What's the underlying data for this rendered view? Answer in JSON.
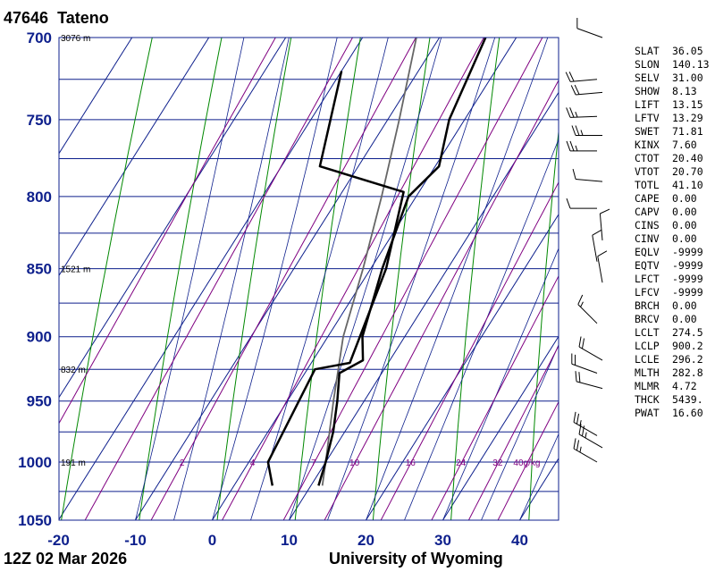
{
  "station": {
    "number": "47646",
    "name": "Tateno"
  },
  "date_label": "12Z 02 Mar 2026",
  "credit": "University of Wyoming",
  "chart_data": {
    "type": "line",
    "subtype": "skew-t log-p",
    "xlabel": "",
    "ylabel": "",
    "xlim": [
      -20,
      45
    ],
    "ylim": [
      1050,
      700
    ],
    "y_scale": "log",
    "pressure_ticks": [
      700,
      750,
      800,
      850,
      900,
      950,
      1000,
      1050
    ],
    "temperature_ticks": [
      -20,
      -10,
      0,
      10,
      20,
      30,
      40
    ],
    "grid": true,
    "height_labels": [
      {
        "p": 700,
        "label": "3076 m"
      },
      {
        "p": 850,
        "label": "1521 m"
      },
      {
        "p": 925,
        "label": "832 m"
      },
      {
        "p": 1000,
        "label": "191 m"
      }
    ],
    "mixing_ratio_labels": [
      {
        "w": 2,
        "label": "2"
      },
      {
        "w": 4,
        "label": "4"
      },
      {
        "w": 7,
        "label": "7"
      },
      {
        "w": 10,
        "label": "10"
      },
      {
        "w": 16,
        "label": "16"
      },
      {
        "w": 24,
        "label": "24"
      },
      {
        "w": 32,
        "label": "32"
      },
      {
        "w": 40,
        "label": "40g/kg"
      }
    ],
    "series": [
      {
        "type": "temperature",
        "points": [
          {
            "p": 1020,
            "t": 11.0
          },
          {
            "p": 1000,
            "t": 10.0
          },
          {
            "p": 975,
            "t": 8.5
          },
          {
            "p": 950,
            "t": 6.5
          },
          {
            "p": 928,
            "t": 4.5
          },
          {
            "p": 918,
            "t": 6.5
          },
          {
            "p": 900,
            "t": 4.5
          },
          {
            "p": 850,
            "t": 1.5
          },
          {
            "p": 800,
            "t": -1.0
          },
          {
            "p": 780,
            "t": 0.5
          },
          {
            "p": 750,
            "t": -2.0
          },
          {
            "p": 700,
            "t": -4.0
          }
        ]
      },
      {
        "type": "dewpoint",
        "points": [
          {
            "p": 1020,
            "t": 5.0
          },
          {
            "p": 1000,
            "t": 2.5
          },
          {
            "p": 925,
            "t": 1.0
          },
          {
            "p": 920,
            "t": 5.0
          },
          {
            "p": 850,
            "t": 2.0
          },
          {
            "p": 797,
            "t": -2.0
          },
          {
            "p": 780,
            "t": -15.0
          },
          {
            "p": 720,
            "t": -20.0
          }
        ]
      },
      {
        "type": "parcel",
        "points": [
          {
            "p": 1020,
            "t": 11.5
          },
          {
            "p": 1000,
            "t": 10.0
          },
          {
            "p": 950,
            "t": 6.0
          },
          {
            "p": 900,
            "t": 2.0
          },
          {
            "p": 850,
            "t": -1.0
          },
          {
            "p": 800,
            "t": -4.5
          },
          {
            "p": 750,
            "t": -8.5
          },
          {
            "p": 700,
            "t": -13.0
          }
        ]
      }
    ],
    "wind_barbs": [
      {
        "p": 1000,
        "dir_deg": 300,
        "speed_kt": 25
      },
      {
        "p": 988,
        "dir_deg": 300,
        "speed_kt": 25
      },
      {
        "p": 978,
        "dir_deg": 300,
        "speed_kt": 25
      },
      {
        "p": 940,
        "dir_deg": 285,
        "speed_kt": 20
      },
      {
        "p": 928,
        "dir_deg": 290,
        "speed_kt": 20
      },
      {
        "p": 918,
        "dir_deg": 300,
        "speed_kt": 20
      },
      {
        "p": 890,
        "dir_deg": 315,
        "speed_kt": 15
      },
      {
        "p": 860,
        "dir_deg": 350,
        "speed_kt": 10
      },
      {
        "p": 845,
        "dir_deg": 350,
        "speed_kt": 10
      },
      {
        "p": 830,
        "dir_deg": 355,
        "speed_kt": 10
      },
      {
        "p": 808,
        "dir_deg": 270,
        "speed_kt": 10
      },
      {
        "p": 790,
        "dir_deg": 275,
        "speed_kt": 10
      },
      {
        "p": 770,
        "dir_deg": 270,
        "speed_kt": 25
      },
      {
        "p": 760,
        "dir_deg": 270,
        "speed_kt": 25
      },
      {
        "p": 748,
        "dir_deg": 268,
        "speed_kt": 25
      },
      {
        "p": 733,
        "dir_deg": 265,
        "speed_kt": 20
      },
      {
        "p": 725,
        "dir_deg": 265,
        "speed_kt": 20
      },
      {
        "p": 700,
        "dir_deg": 290,
        "speed_kt": 10
      }
    ]
  },
  "indices": [
    {
      "name": "SLAT",
      "value": "36.05"
    },
    {
      "name": "SLON",
      "value": "140.13"
    },
    {
      "name": "SELV",
      "value": "31.00"
    },
    {
      "name": "SHOW",
      "value": "8.13"
    },
    {
      "name": "LIFT",
      "value": "13.15"
    },
    {
      "name": "LFTV",
      "value": "13.29"
    },
    {
      "name": "SWET",
      "value": "71.81"
    },
    {
      "name": "KINX",
      "value": "7.60"
    },
    {
      "name": "CTOT",
      "value": "20.40"
    },
    {
      "name": "VTOT",
      "value": "20.70"
    },
    {
      "name": "TOTL",
      "value": "41.10"
    },
    {
      "name": "CAPE",
      "value": "0.00"
    },
    {
      "name": "CAPV",
      "value": "0.00"
    },
    {
      "name": "CINS",
      "value": "0.00"
    },
    {
      "name": "CINV",
      "value": "0.00"
    },
    {
      "name": "EQLV",
      "value": "-9999"
    },
    {
      "name": "EQTV",
      "value": "-9999"
    },
    {
      "name": "LFCT",
      "value": "-9999"
    },
    {
      "name": "LFCV",
      "value": "-9999"
    },
    {
      "name": "BRCH",
      "value": "0.00"
    },
    {
      "name": "BRCV",
      "value": "0.00"
    },
    {
      "name": "LCLT",
      "value": "274.5"
    },
    {
      "name": "LCLP",
      "value": "900.2"
    },
    {
      "name": "LCLE",
      "value": "296.2"
    },
    {
      "name": "MLTH",
      "value": "282.8"
    },
    {
      "name": "MLMR",
      "value": "4.72"
    },
    {
      "name": "THCK",
      "value": "5439."
    },
    {
      "name": "PWAT",
      "value": "16.60"
    }
  ],
  "colors": {
    "axis_text": "#0d1f8c",
    "isobar": "#0d1f8c",
    "isotherm": "#0d1f8c",
    "dry_adiabat": "#008800",
    "moist_adiabat": "#0d1f8c",
    "mixing_ratio": "#800080",
    "profile": "#000000",
    "parcel": "#666666"
  }
}
